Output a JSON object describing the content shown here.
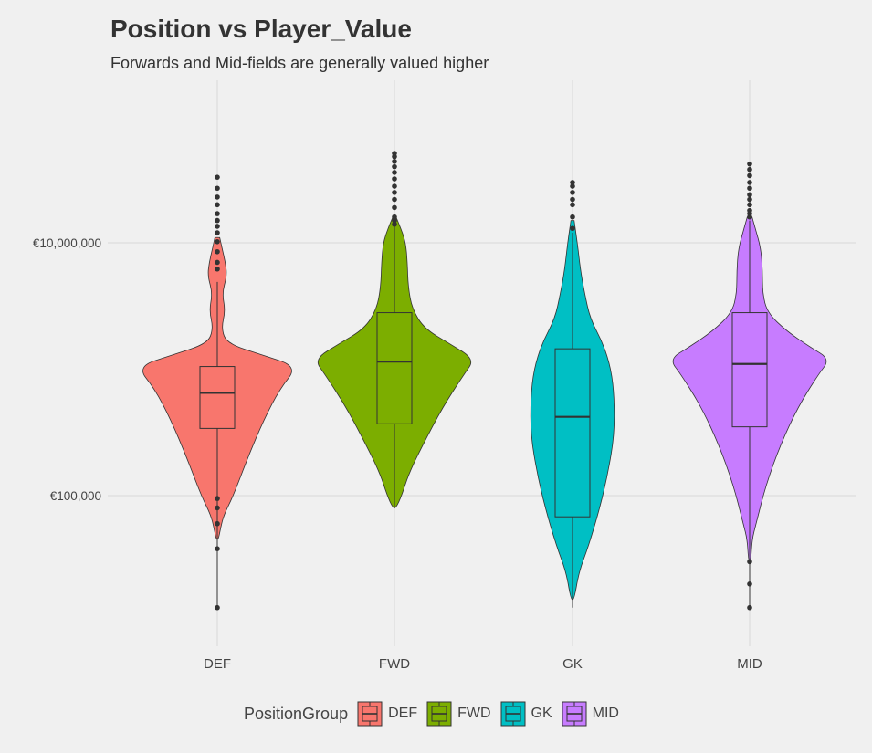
{
  "chart_data": {
    "type": "violin",
    "title": "Position vs Player_Value",
    "subtitle": "Forwards and Mid-fields are generally valued higher",
    "xlabel": "",
    "ylabel": "",
    "y_scale": "log10",
    "y_ticks": [
      {
        "value": 10000000,
        "label": "€10,000,000"
      },
      {
        "value": 100000,
        "label": "€100,000"
      }
    ],
    "grid": true,
    "legend": {
      "title": "PositionGroup",
      "position": "bottom"
    },
    "categories": [
      "DEF",
      "FWD",
      "GK",
      "MID"
    ],
    "series": [
      {
        "name": "DEF",
        "color": "#F8766D",
        "box": {
          "min": 13000,
          "q1": 340000,
          "median": 650000,
          "q3": 1050000,
          "max": 4900000
        },
        "outliers": [
          13000,
          38000,
          60000,
          80000,
          95000,
          6200000,
          7000000,
          8500000,
          10200000,
          12000000,
          13500000,
          15000000,
          17000000,
          20000000,
          23000000,
          27000000,
          33000000
        ],
        "density_profile": [
          [
            11000000,
            0.03
          ],
          [
            9000000,
            0.06
          ],
          [
            7000000,
            0.1
          ],
          [
            5500000,
            0.12
          ],
          [
            4000000,
            0.06
          ],
          [
            2900000,
            0.1
          ],
          [
            2100000,
            0.05
          ],
          [
            1600000,
            0.12
          ],
          [
            1300000,
            0.55
          ],
          [
            1050000,
            1.0
          ],
          [
            700000,
            0.78
          ],
          [
            400000,
            0.58
          ],
          [
            200000,
            0.38
          ],
          [
            100000,
            0.2
          ],
          [
            70000,
            0.08
          ],
          [
            55000,
            0.04
          ],
          [
            45000,
            0.0
          ]
        ]
      },
      {
        "name": "FWD",
        "color": "#7CAE00",
        "box": {
          "min": 80000,
          "q1": 370000,
          "median": 1150000,
          "q3": 2800000,
          "max": 14000000
        },
        "outliers": [
          14000000,
          15000000,
          16000000,
          19000000,
          22000000,
          25000000,
          28000000,
          32000000,
          36000000,
          40000000,
          44000000,
          48000000,
          51000000
        ],
        "density_profile": [
          [
            16000000,
            0.02
          ],
          [
            13000000,
            0.08
          ],
          [
            10000000,
            0.14
          ],
          [
            7000000,
            0.16
          ],
          [
            4500000,
            0.17
          ],
          [
            3000000,
            0.22
          ],
          [
            2100000,
            0.37
          ],
          [
            1600000,
            0.68
          ],
          [
            1200000,
            1.0
          ],
          [
            900000,
            0.86
          ],
          [
            500000,
            0.6
          ],
          [
            250000,
            0.35
          ],
          [
            150000,
            0.18
          ],
          [
            100000,
            0.09
          ],
          [
            80000,
            0.02
          ]
        ]
      },
      {
        "name": "GK",
        "color": "#00BFC4",
        "box": {
          "min": 13000,
          "q1": 68000,
          "median": 420000,
          "q3": 1450000,
          "max": 12000000
        },
        "outliers": [
          13000000,
          16000000,
          20000000,
          22000000,
          25000000,
          28000000,
          30000000
        ],
        "density_profile": [
          [
            15000000,
            0.02
          ],
          [
            10000000,
            0.06
          ],
          [
            6000000,
            0.1
          ],
          [
            4000000,
            0.15
          ],
          [
            2500000,
            0.22
          ],
          [
            1600000,
            0.38
          ],
          [
            1000000,
            0.48
          ],
          [
            600000,
            0.52
          ],
          [
            300000,
            0.52
          ],
          [
            150000,
            0.44
          ],
          [
            80000,
            0.34
          ],
          [
            40000,
            0.2
          ],
          [
            25000,
            0.08
          ],
          [
            15000,
            0.02
          ]
        ]
      },
      {
        "name": "MID",
        "color": "#C77CFF",
        "box": {
          "min": 13000,
          "q1": 350000,
          "median": 1100000,
          "q3": 2800000,
          "max": 15000000
        },
        "outliers": [
          13000,
          20000,
          30000,
          16000000,
          17000000,
          18000000,
          20000000,
          22000000,
          24000000,
          27000000,
          30000000,
          34000000,
          38000000,
          42000000
        ],
        "density_profile": [
          [
            16000000,
            0.03
          ],
          [
            13000000,
            0.07
          ],
          [
            9000000,
            0.14
          ],
          [
            6000000,
            0.16
          ],
          [
            4000000,
            0.16
          ],
          [
            2800000,
            0.22
          ],
          [
            2000000,
            0.46
          ],
          [
            1500000,
            0.75
          ],
          [
            1200000,
            1.0
          ],
          [
            900000,
            0.85
          ],
          [
            500000,
            0.6
          ],
          [
            250000,
            0.38
          ],
          [
            120000,
            0.2
          ],
          [
            60000,
            0.08
          ],
          [
            45000,
            0.03
          ],
          [
            30000,
            0.0
          ]
        ]
      }
    ]
  }
}
